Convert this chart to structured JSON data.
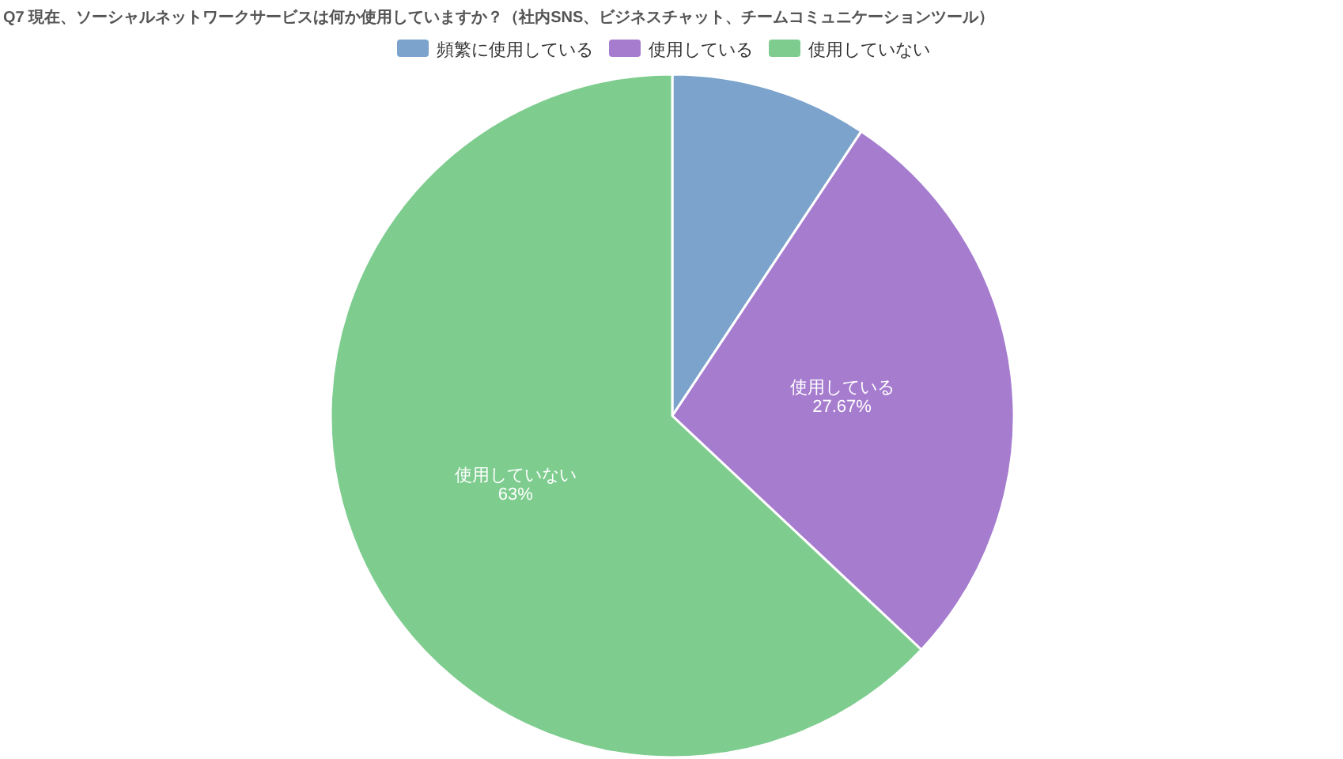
{
  "chart_data": {
    "type": "pie",
    "title": "Q7 現在、ソーシャルネットワークサービスは何か使用していますか？（社内SNS、ビジネスチャット、チームコミュニケーションツール）",
    "categories": [
      "頻繁に使用している",
      "使用している",
      "使用していない"
    ],
    "values": [
      9.33,
      27.67,
      63
    ],
    "colors": [
      "#7ba3cb",
      "#a67ccf",
      "#7ecd8f"
    ],
    "value_labels": [
      null,
      "27.67%",
      "63%"
    ],
    "legend": "top"
  }
}
